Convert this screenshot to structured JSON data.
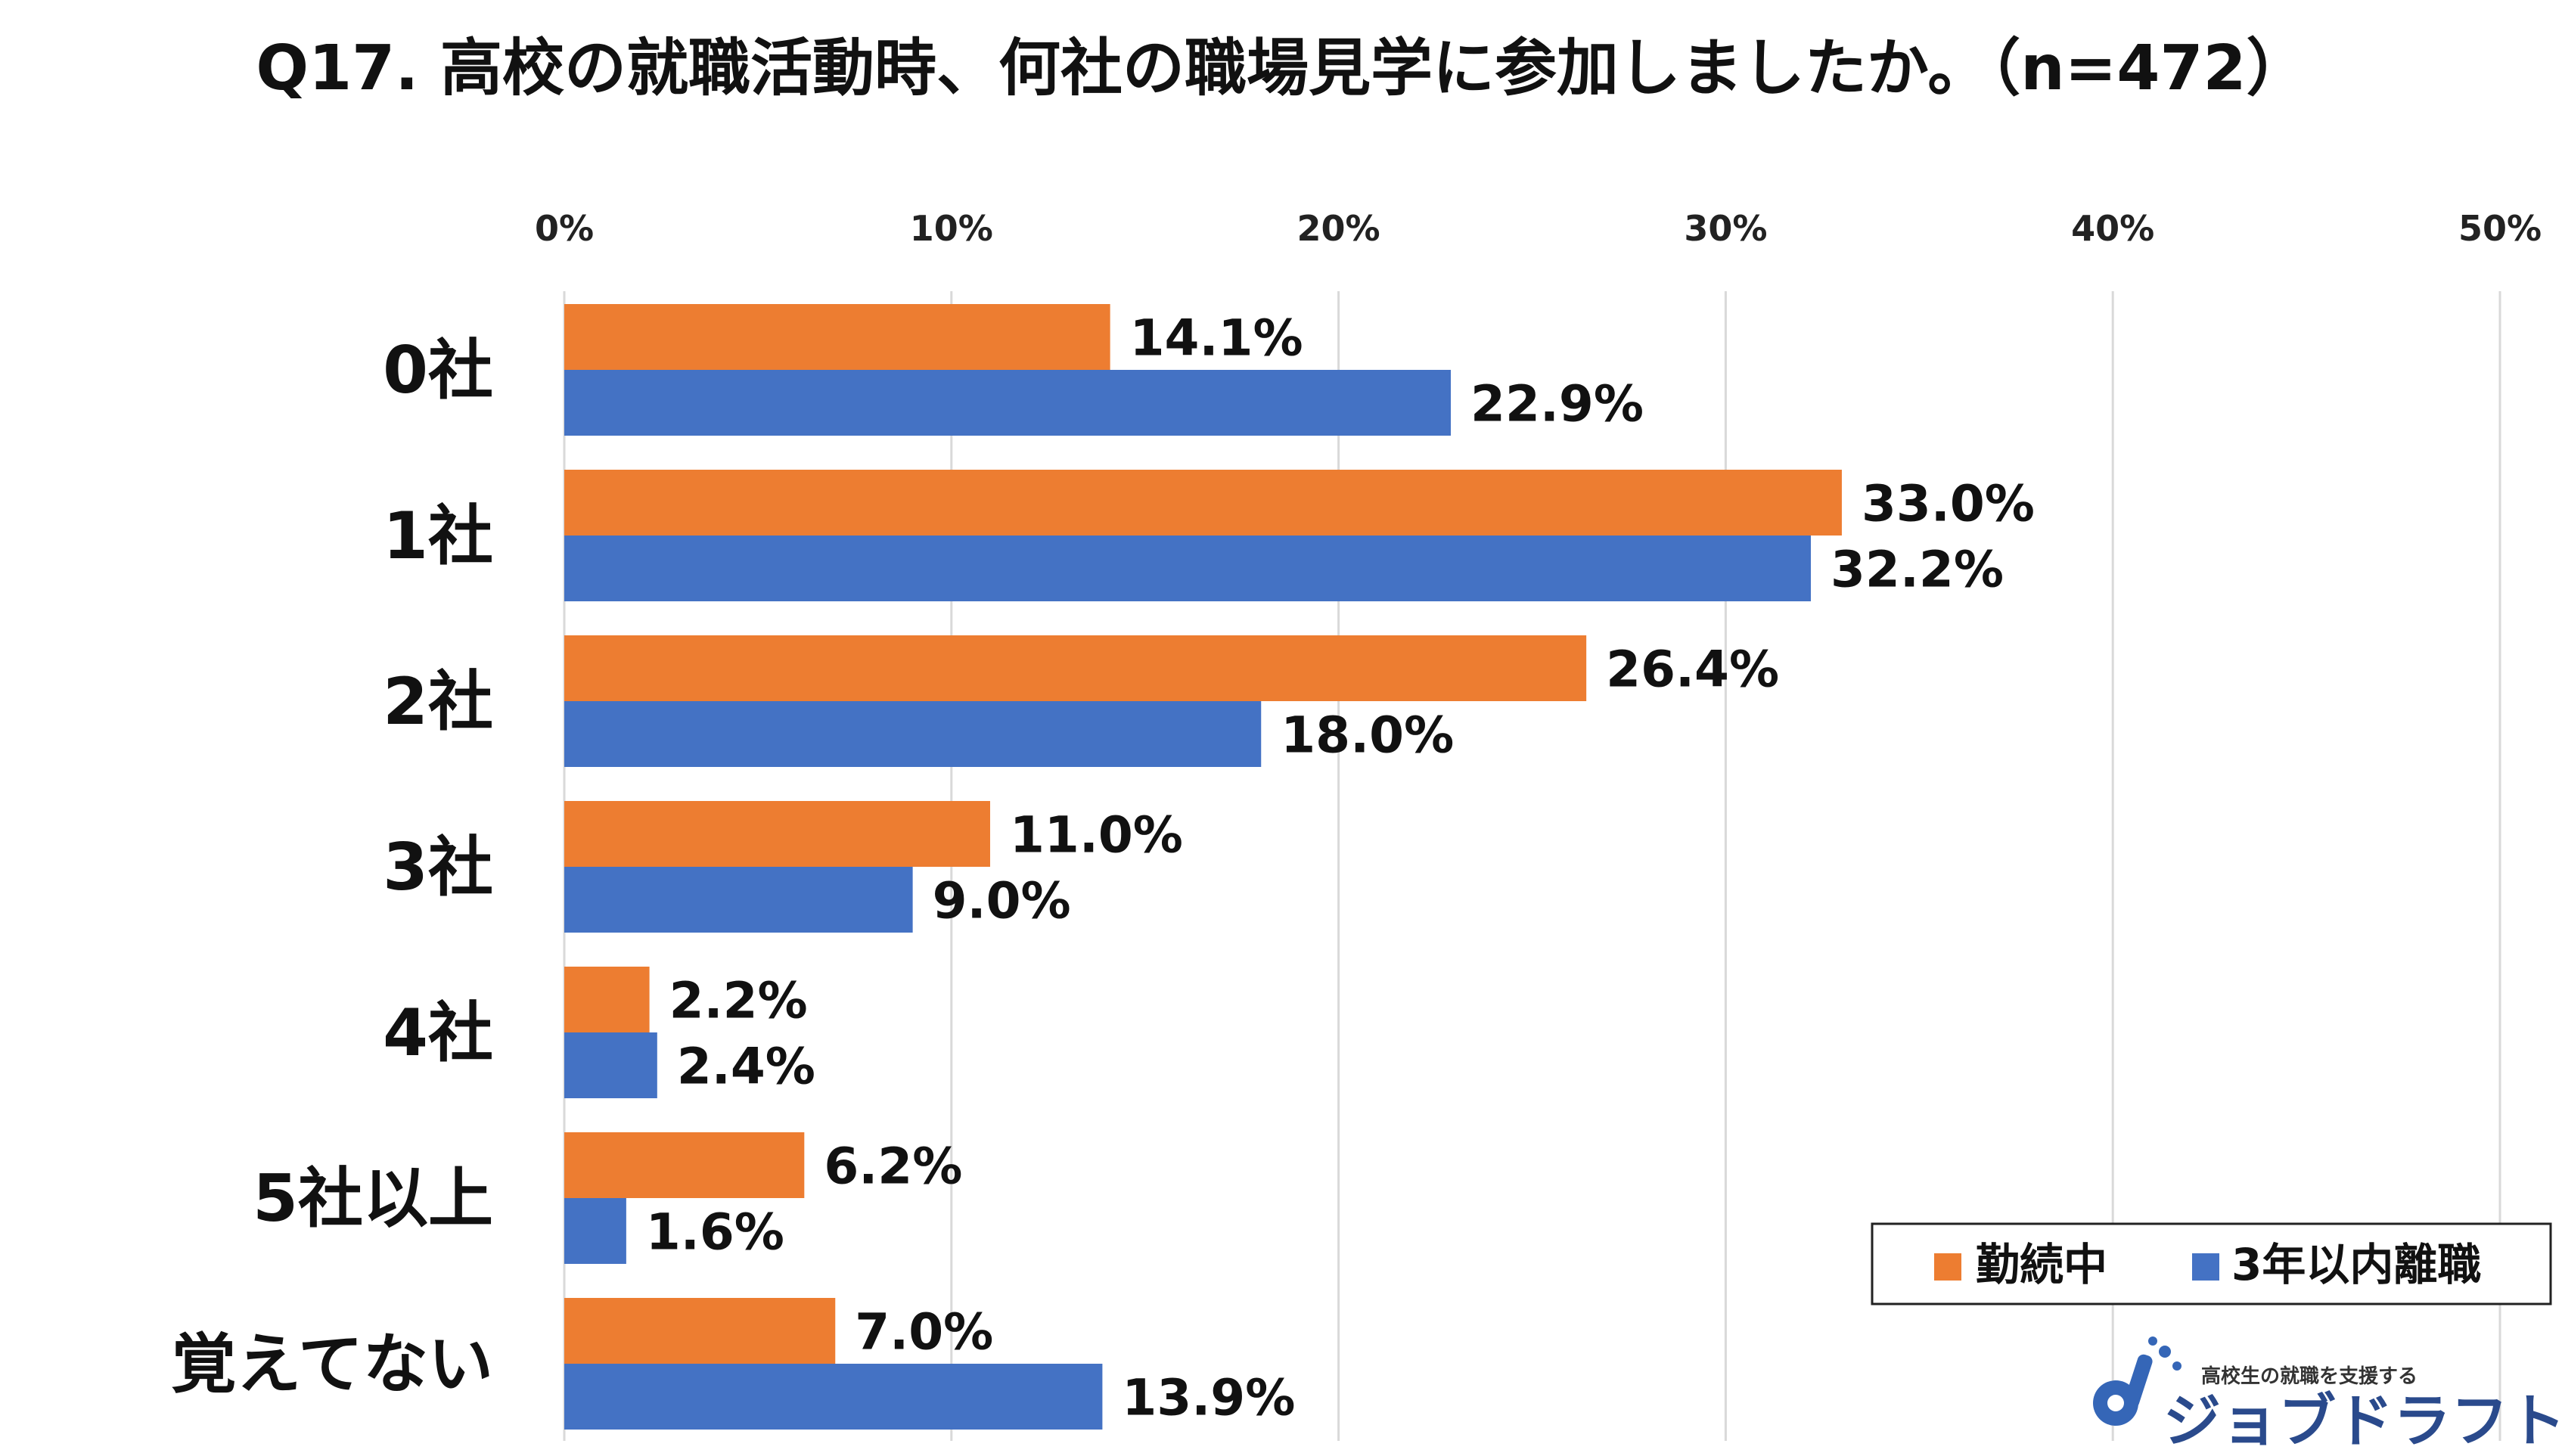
{
  "chart_data": {
    "type": "bar",
    "orientation": "horizontal",
    "title": "Q17. 高校の就職活動時、何社の職場見学に参加しましたか。（n=472）",
    "categories": [
      "0社",
      "1社",
      "2社",
      "3社",
      "4社",
      "5社以上",
      "覚えてない"
    ],
    "series": [
      {
        "name": "勤続中",
        "color": "#ED7D31",
        "values": [
          14.1,
          33.0,
          26.4,
          11.0,
          2.2,
          6.2,
          7.0
        ],
        "labels": [
          "14.1%",
          "33.0%",
          "26.4%",
          "11.0%",
          "2.2%",
          "6.2%",
          "7.0%"
        ]
      },
      {
        "name": "3年以内離職",
        "color": "#4472C4",
        "values": [
          22.9,
          32.2,
          18.0,
          9.0,
          2.4,
          1.6,
          13.9
        ],
        "labels": [
          "22.9%",
          "32.2%",
          "18.0%",
          "9.0%",
          "2.4%",
          "1.6%",
          "13.9%"
        ]
      }
    ],
    "xlim": [
      0,
      50
    ],
    "x_ticks": [
      0,
      10,
      20,
      30,
      40,
      50
    ],
    "x_tick_labels": [
      "0%",
      "10%",
      "20%",
      "30%",
      "40%",
      "50%"
    ],
    "xlabel": "",
    "ylabel": "",
    "axis_position": "top",
    "grid": true,
    "legend_position": "bottom-right"
  },
  "logo": {
    "tagline": "高校生の就職を支援する",
    "name": "ジョブドラフト"
  }
}
